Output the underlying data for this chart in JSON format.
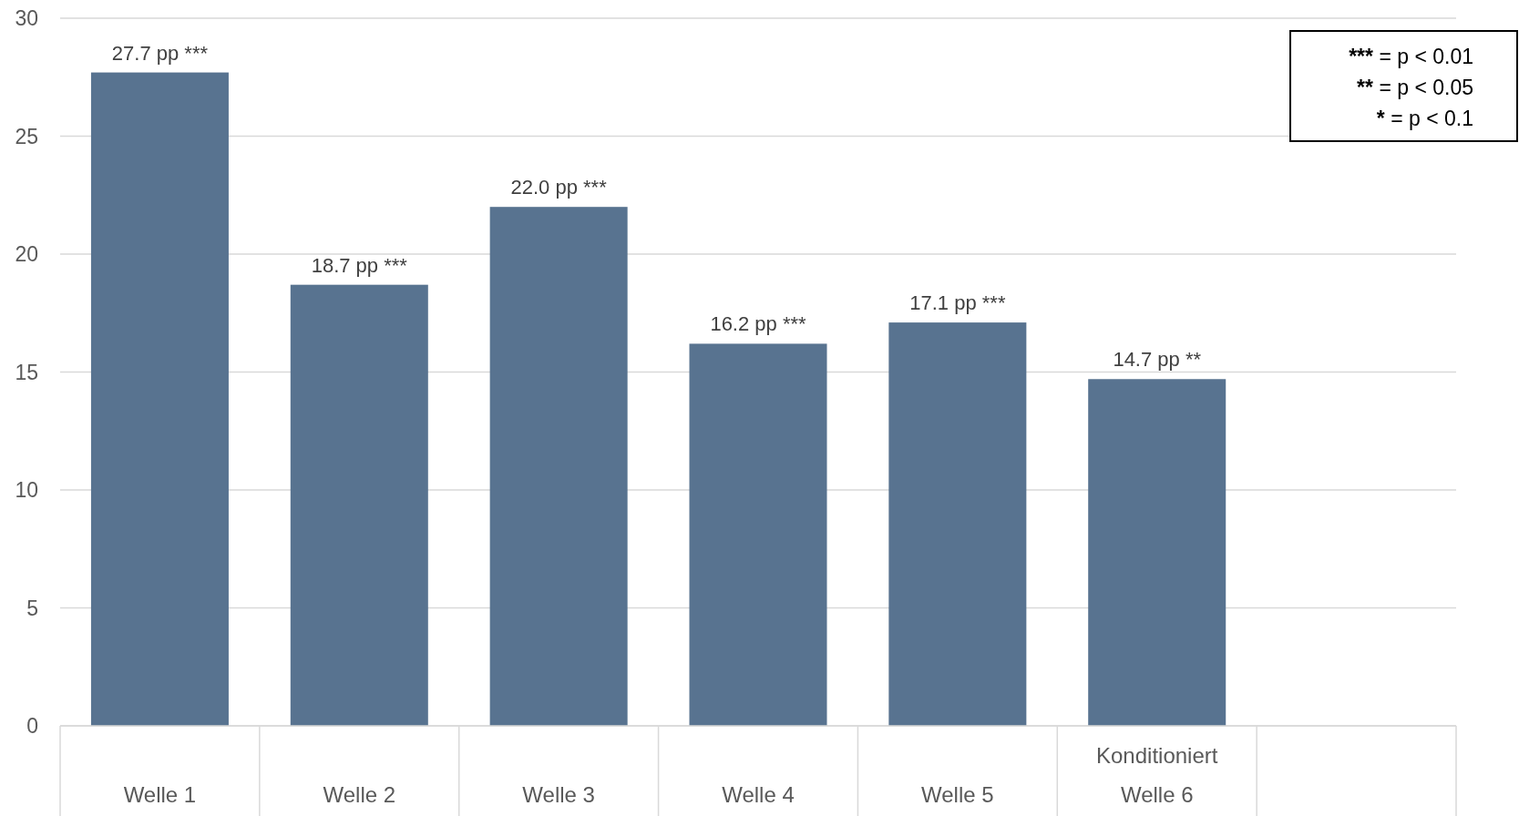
{
  "chart_data": {
    "type": "bar",
    "categories": [
      "Welle 1",
      "Welle 2",
      "Welle 3",
      "Welle 4",
      "Welle 5",
      "Welle 6",
      null
    ],
    "values": [
      27.7,
      18.7,
      22.0,
      16.2,
      17.1,
      14.7,
      null
    ],
    "color": "#587390",
    "value_labels": [
      "27.7 pp ***",
      "18.7 pp ***",
      "22.0 pp ***",
      "16.2 pp ***",
      "17.1 pp ***",
      "14.7 pp **",
      null
    ],
    "ylim": [
      0,
      30
    ],
    "yticks": [
      0,
      5,
      10,
      15,
      20,
      25,
      30
    ],
    "grid": "y",
    "annotations": [
      "Konditioniert",
      "*** = p < 0.01",
      "** = p < 0.05",
      "* = p < 0.1"
    ]
  }
}
